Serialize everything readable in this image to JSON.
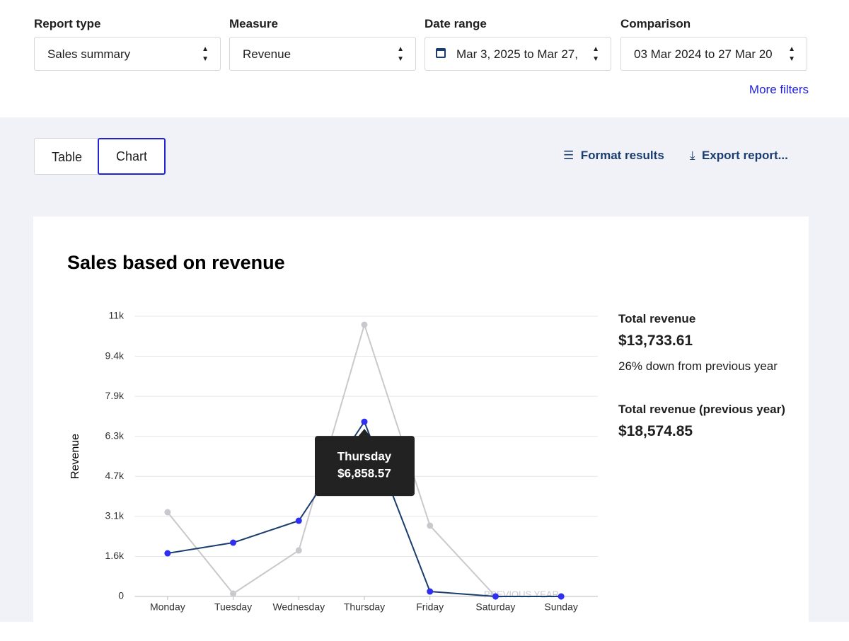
{
  "filters": [
    {
      "label": "Report type",
      "value": "Sales summary"
    },
    {
      "label": "Measure",
      "value": "Revenue"
    },
    {
      "label": "Date range",
      "value": "Mar 3, 2025 to Mar 27,"
    },
    {
      "label": "Comparison",
      "value": "03 Mar 2024 to 27 Mar 20"
    }
  ],
  "more_filters": "More filters",
  "tabs": [
    "Table",
    "Chart"
  ],
  "actions": [
    "Format results",
    "Export report..."
  ],
  "summary": [
    {
      "label": "Total revenue",
      "value": "$13,733.61",
      "note": "26% down from previous year"
    },
    {
      "label": "Total revenue (previous year)",
      "value": "$18,574.85"
    }
  ],
  "chart_data": {
    "type": "line",
    "title": "Sales based on revenue",
    "y_label": "Revenue",
    "categories": [
      "Monday",
      "Tuesday",
      "Wednesday",
      "Thursday",
      "Friday",
      "Saturday",
      "Sunday"
    ],
    "series": [
      {
        "color": "#1b3d6e",
        "marker_color": "#2f2ff2",
        "values": [
          1694,
          2111,
          2972,
          6858.57,
          194,
          0,
          0
        ]
      },
      {
        "name": "PREVIOUS YEAR",
        "color": "#c9c9cd",
        "marker_color": "#c9c9cd",
        "values": [
          3306,
          111,
          1806,
          10667,
          2778,
          0,
          0
        ]
      }
    ],
    "ylim": [
      0,
      11000
    ],
    "yticks": [
      0,
      {
        "value": 1571,
        "label": "1.6k"
      },
      {
        "value": 3143,
        "label": "3.1k"
      },
      {
        "value": 4714,
        "label": "4.7k"
      },
      {
        "value": 6286,
        "label": "6.3k"
      },
      {
        "value": 7857,
        "label": "7.9k"
      },
      {
        "value": 9429,
        "label": "9.4k"
      },
      {
        "value": 11000,
        "label": "11k"
      }
    ],
    "grid": true,
    "tooltip": {
      "category": "Thursday",
      "value_label": "$6,858.57"
    }
  }
}
